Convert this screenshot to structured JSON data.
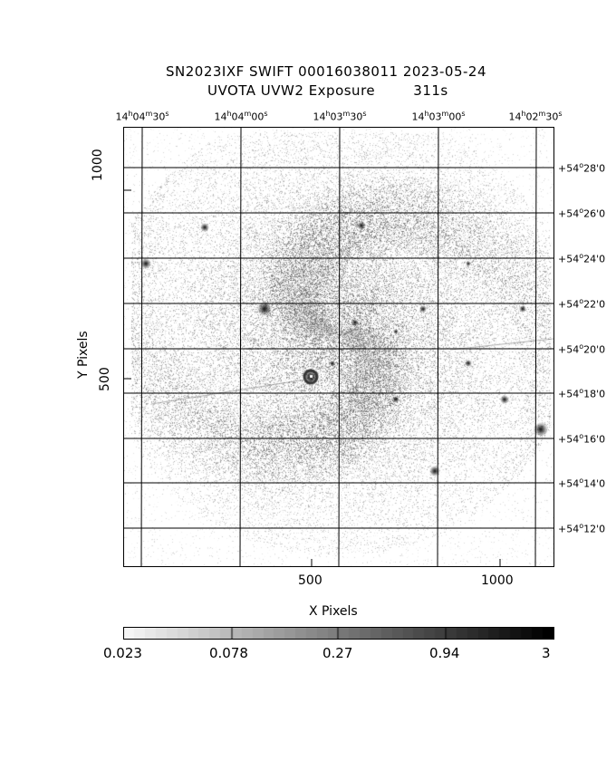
{
  "title": {
    "line1": "SN2023IXF SWIFT 00016038011 2023-05-24",
    "line2": "UVOTA UVW2 Exposure        311s"
  },
  "axes": {
    "xlabel": "X Pixels",
    "ylabel": "Y Pixels",
    "x_ticks": [
      "500",
      "1000"
    ],
    "y_ticks": [
      "1000",
      "500"
    ]
  },
  "ra_labels": [
    {
      "h": "14",
      "m": "04",
      "s": "30"
    },
    {
      "h": "14",
      "m": "04",
      "s": "00"
    },
    {
      "h": "14",
      "m": "03",
      "s": "30"
    },
    {
      "h": "14",
      "m": "03",
      "s": "00"
    },
    {
      "h": "14",
      "m": "02",
      "s": "30"
    }
  ],
  "dec_labels": [
    {
      "sign": "+54",
      "min": "28",
      "sec": "0"
    },
    {
      "sign": "+54",
      "min": "26",
      "sec": "0"
    },
    {
      "sign": "+54",
      "min": "24",
      "sec": "0"
    },
    {
      "sign": "+54",
      "min": "22",
      "sec": "0"
    },
    {
      "sign": "+54",
      "min": "20",
      "sec": "0"
    },
    {
      "sign": "+54",
      "min": "18",
      "sec": "0"
    },
    {
      "sign": "+54",
      "min": "16",
      "sec": "0"
    },
    {
      "sign": "+54",
      "min": "14",
      "sec": "0"
    },
    {
      "sign": "+54",
      "min": "12",
      "sec": "0"
    }
  ],
  "colorbar": {
    "labels": [
      "0.023",
      "0.078",
      "0.27",
      "0.94",
      "3"
    ]
  },
  "image": {
    "description_icon": "galaxy-uv-image",
    "colormap": "grayscale-inverted"
  }
}
